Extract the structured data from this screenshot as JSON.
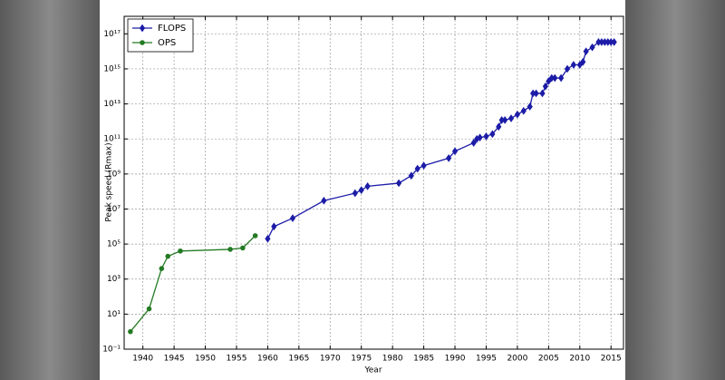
{
  "chart_data": {
    "type": "line",
    "x_label": "Year",
    "y_label": "Peak speed (Rmax)",
    "xlim": [
      1937,
      2017
    ],
    "xticks": [
      1940,
      1945,
      1950,
      1955,
      1960,
      1965,
      1970,
      1975,
      1980,
      1985,
      1990,
      1995,
      2000,
      2005,
      2010,
      2015
    ],
    "ylim": [
      0.1,
      1e+18
    ],
    "yscale": "log",
    "yticks": [
      {
        "value": 0.1,
        "label": "10⁻¹"
      },
      {
        "value": 10,
        "label": "10¹"
      },
      {
        "value": 1000,
        "label": "10³"
      },
      {
        "value": 100000,
        "label": "10⁵"
      },
      {
        "value": 10000000,
        "label": "10⁷"
      },
      {
        "value": 1000000000,
        "label": "10⁹"
      },
      {
        "value": 100000000000,
        "label": "10¹¹"
      },
      {
        "value": 10000000000000,
        "label": "10¹³"
      },
      {
        "value": 1000000000000000,
        "label": "10¹⁵"
      },
      {
        "value": 100000000000000000,
        "label": "10¹⁷"
      }
    ],
    "grid": true,
    "legend": "upper left",
    "series": [
      {
        "name": "FLOPS",
        "color": "#1c1ca8",
        "marker": "diamond",
        "x": [
          1960,
          1961,
          1964,
          1969,
          1974,
          1975,
          1976,
          1981,
          1983,
          1984,
          1985,
          1989,
          1990,
          1993,
          1993.5,
          1994,
          1995,
          1996,
          1997,
          1997.5,
          1998,
          1999,
          2000,
          2001,
          2002,
          2002.5,
          2003,
          2004,
          2004.5,
          2005,
          2005.5,
          2006,
          2007,
          2008,
          2009,
          2010,
          2010.5,
          2011,
          2012,
          2013,
          2013.5,
          2014,
          2014.5,
          2015,
          2015.5
        ],
        "values": [
          200000,
          1000000,
          3000000,
          30000000,
          80000000,
          120000000,
          200000000,
          300000000,
          800000000,
          2000000000,
          3000000000,
          8000000000,
          20000000000,
          60000000000,
          100000000000,
          120000000000,
          140000000000,
          190000000000,
          500000000000,
          1200000000000,
          1200000000000,
          1500000000000,
          2500000000000,
          4000000000000,
          7000000000000,
          40000000000000,
          40000000000000,
          40000000000000,
          100000000000000,
          200000000000000,
          300000000000000,
          300000000000000,
          300000000000000,
          1000000000000000,
          1700000000000000,
          1700000000000000,
          2500000000000000,
          10000000000000000,
          17000000000000000,
          34000000000000000,
          34000000000000000,
          34000000000000000,
          34000000000000000,
          34000000000000000,
          34000000000000000
        ]
      },
      {
        "name": "OPS",
        "color": "#237b23",
        "marker": "circle",
        "x": [
          1938,
          1941,
          1943,
          1944,
          1946,
          1954,
          1956,
          1958
        ],
        "values": [
          1,
          20,
          4000,
          20000,
          40000,
          50000,
          60000,
          300000
        ]
      }
    ]
  }
}
